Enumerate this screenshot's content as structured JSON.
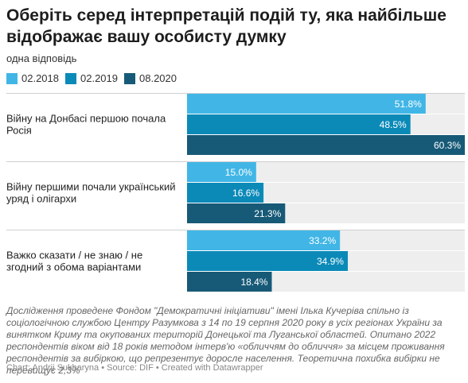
{
  "title": "Оберіть серед інтерпретацій подій ту, яка найбільше відображає вашу особисту думку",
  "subtitle": "одна відповідь",
  "notes": "Дослідження проведене Фондом \"Демократичні ініціативи\" імені Ілька Кучеріва спільно із соціологічною службою Центру Разумкова з 14 по 19 серпня 2020 року в усіх регіонах України за винятком Криму та окупованих територій Донецької та Луганської областей. Опитано 2022 респондентів віком від 18 років методом інтерв'ю «обличчям до обличчя» за місцем проживання респондентів за вибіркою, що репрезентує доросле населення. Теоретична похибка вибірки не перевищує 2,3%",
  "byline": "Chart: Andrii Sukharyna • Source: DIF • Created with Datawrapper",
  "colors": {
    "02.2018": "#41b6e6",
    "02.2019": "#0b8ab8",
    "08.2020": "#175a77",
    "track": "#eeeeee"
  },
  "chart_data": {
    "type": "bar",
    "orientation": "horizontal",
    "categories": [
      "Війну на Донбасі першою почала Росія",
      "Війну першими почали український уряд і олігархи",
      "Важко сказати / не знаю / не згодний з обома варіантами"
    ],
    "series": [
      {
        "name": "02.2018",
        "values": [
          51.8,
          15.0,
          33.2
        ]
      },
      {
        "name": "02.2019",
        "values": [
          48.5,
          16.6,
          34.9
        ]
      },
      {
        "name": "08.2020",
        "values": [
          60.3,
          21.3,
          18.4
        ]
      }
    ],
    "value_format": "%",
    "xlim": [
      0,
      60.3
    ],
    "legend_position": "top-left"
  }
}
